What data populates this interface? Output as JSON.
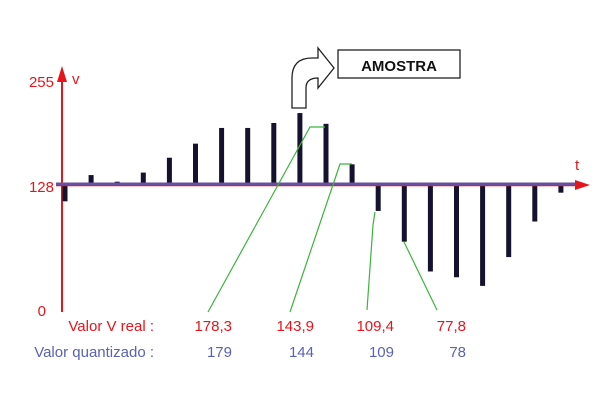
{
  "axis": {
    "y_label": "v",
    "x_label": "t",
    "ticks": [
      "255",
      "128",
      "0"
    ],
    "tick_values": [
      255,
      128,
      0
    ],
    "color": "#e8141c"
  },
  "series": {
    "baseline": 128,
    "bar_levels": [
      111,
      140,
      132,
      143,
      161,
      178,
      197,
      197,
      203,
      215,
      202,
      153,
      101,
      69,
      38,
      32,
      23,
      53,
      90,
      120
    ],
    "bar_color": "#14122e",
    "baseline_color": "#6a4fa0"
  },
  "sample_box": {
    "label": "AMOSTRA"
  },
  "rows": {
    "real_label": "Valor V real :",
    "quant_label": "Valor quantizado :",
    "real_values": [
      "178,3",
      "143,9",
      "109,4",
      "77,8"
    ],
    "quant_values": [
      "179",
      "144",
      "109",
      "78"
    ],
    "real_color": "#e8141c",
    "quant_color": "#5a62b4",
    "leader_color": "#3cb43c"
  }
}
